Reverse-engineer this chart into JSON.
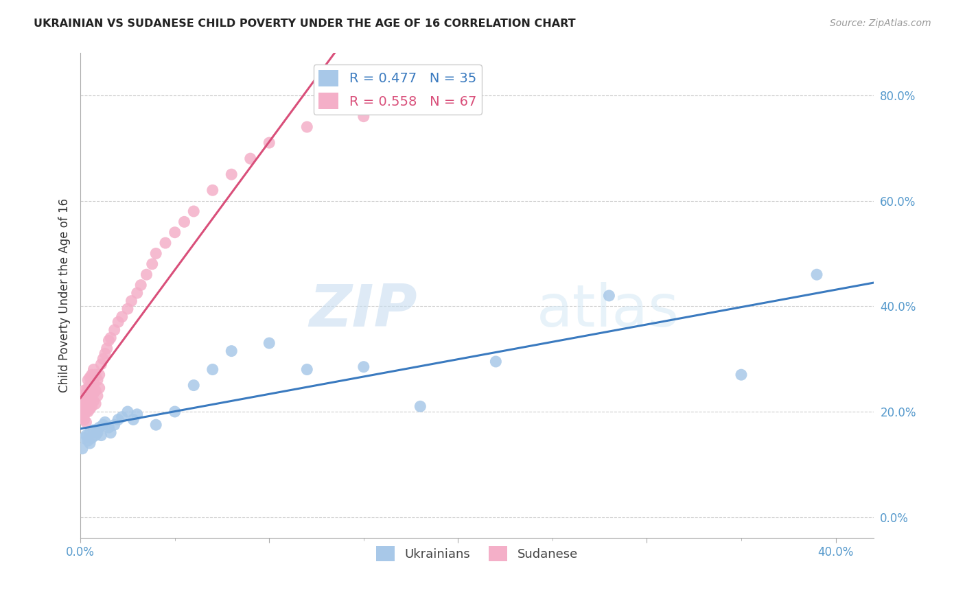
{
  "title": "UKRAINIAN VS SUDANESE CHILD POVERTY UNDER THE AGE OF 16 CORRELATION CHART",
  "source": "Source: ZipAtlas.com",
  "ylabel": "Child Poverty Under the Age of 16",
  "watermark_zip": "ZIP",
  "watermark_atlas": "atlas",
  "xlim": [
    0.0,
    0.42
  ],
  "ylim": [
    -0.04,
    0.88
  ],
  "ukrainian_R": "0.477",
  "ukrainian_N": "35",
  "sudanese_R": "0.558",
  "sudanese_N": "67",
  "ukrainian_color": "#a8c8e8",
  "sudanese_color": "#f4afc8",
  "ukrainian_line_color": "#3a7abf",
  "sudanese_line_color": "#d94f7a",
  "ukrainian_scatter_x": [
    0.001,
    0.002,
    0.003,
    0.004,
    0.005,
    0.005,
    0.006,
    0.007,
    0.008,
    0.009,
    0.01,
    0.011,
    0.012,
    0.013,
    0.015,
    0.016,
    0.018,
    0.02,
    0.022,
    0.025,
    0.028,
    0.03,
    0.04,
    0.05,
    0.06,
    0.07,
    0.08,
    0.1,
    0.12,
    0.15,
    0.18,
    0.22,
    0.28,
    0.35,
    0.39
  ],
  "ukrainian_scatter_y": [
    0.13,
    0.15,
    0.155,
    0.145,
    0.14,
    0.16,
    0.15,
    0.165,
    0.155,
    0.16,
    0.17,
    0.155,
    0.175,
    0.18,
    0.17,
    0.16,
    0.175,
    0.185,
    0.19,
    0.2,
    0.185,
    0.195,
    0.175,
    0.2,
    0.25,
    0.28,
    0.315,
    0.33,
    0.28,
    0.285,
    0.21,
    0.295,
    0.42,
    0.27,
    0.46
  ],
  "sudanese_scatter_x": [
    0.001,
    0.001,
    0.001,
    0.001,
    0.001,
    0.002,
    0.002,
    0.002,
    0.002,
    0.002,
    0.002,
    0.003,
    0.003,
    0.003,
    0.003,
    0.003,
    0.004,
    0.004,
    0.004,
    0.004,
    0.004,
    0.005,
    0.005,
    0.005,
    0.005,
    0.005,
    0.006,
    0.006,
    0.006,
    0.006,
    0.007,
    0.007,
    0.007,
    0.007,
    0.008,
    0.008,
    0.008,
    0.009,
    0.009,
    0.01,
    0.01,
    0.011,
    0.012,
    0.013,
    0.014,
    0.015,
    0.016,
    0.018,
    0.02,
    0.022,
    0.025,
    0.027,
    0.03,
    0.032,
    0.035,
    0.038,
    0.04,
    0.045,
    0.05,
    0.055,
    0.06,
    0.07,
    0.08,
    0.09,
    0.1,
    0.12,
    0.15
  ],
  "sudanese_scatter_y": [
    0.19,
    0.2,
    0.21,
    0.22,
    0.23,
    0.185,
    0.195,
    0.205,
    0.215,
    0.225,
    0.24,
    0.18,
    0.2,
    0.215,
    0.225,
    0.235,
    0.2,
    0.215,
    0.235,
    0.245,
    0.26,
    0.205,
    0.22,
    0.23,
    0.25,
    0.265,
    0.21,
    0.225,
    0.245,
    0.27,
    0.22,
    0.235,
    0.255,
    0.28,
    0.215,
    0.24,
    0.27,
    0.23,
    0.26,
    0.245,
    0.27,
    0.29,
    0.3,
    0.31,
    0.32,
    0.335,
    0.34,
    0.355,
    0.37,
    0.38,
    0.395,
    0.41,
    0.425,
    0.44,
    0.46,
    0.48,
    0.5,
    0.52,
    0.54,
    0.56,
    0.58,
    0.62,
    0.65,
    0.68,
    0.71,
    0.74,
    0.76
  ]
}
